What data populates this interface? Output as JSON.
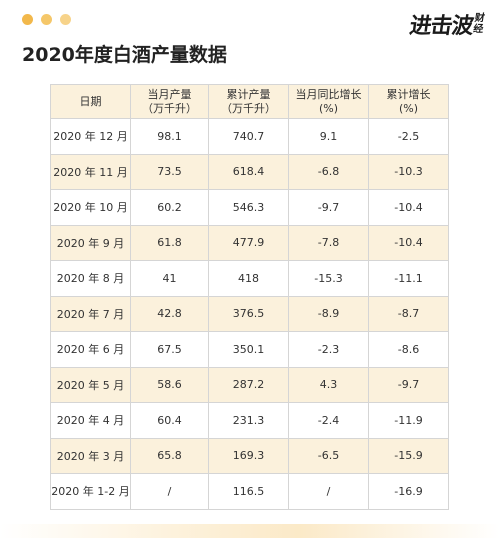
{
  "logo": {
    "main": "进击波",
    "sub": [
      "财",
      "经"
    ]
  },
  "title": "2020年度白酒产量数据",
  "table": {
    "headers": [
      {
        "line1": "日期",
        "line2": ""
      },
      {
        "line1": "当月产量",
        "line2": "（万千升）"
      },
      {
        "line1": "累计产量",
        "line2": "（万千升）"
      },
      {
        "line1": "当月同比增长",
        "line2": "(%)"
      },
      {
        "line1": "累计增长",
        "line2": "(%)"
      }
    ],
    "rows": [
      [
        "2020 年 12 月",
        "98.1",
        "740.7",
        "9.1",
        "-2.5"
      ],
      [
        "2020 年 11 月",
        "73.5",
        "618.4",
        "-6.8",
        "-10.3"
      ],
      [
        "2020 年 10 月",
        "60.2",
        "546.3",
        "-9.7",
        "-10.4"
      ],
      [
        "2020 年 9 月",
        "61.8",
        "477.9",
        "-7.8",
        "-10.4"
      ],
      [
        "2020 年 8 月",
        "41",
        "418",
        "-15.3",
        "-11.1"
      ],
      [
        "2020 年 7 月",
        "42.8",
        "376.5",
        "-8.9",
        "-8.7"
      ],
      [
        "2020 年 6 月",
        "67.5",
        "350.1",
        "-2.3",
        "-8.6"
      ],
      [
        "2020 年 5 月",
        "58.6",
        "287.2",
        "4.3",
        "-9.7"
      ],
      [
        "2020 年 4 月",
        "60.4",
        "231.3",
        "-2.4",
        "-11.9"
      ],
      [
        "2020 年 3 月",
        "65.8",
        "169.3",
        "-6.5",
        "-15.9"
      ],
      [
        "2020 年 1-2 月",
        "/",
        "116.5",
        "/",
        "-16.9"
      ]
    ]
  }
}
